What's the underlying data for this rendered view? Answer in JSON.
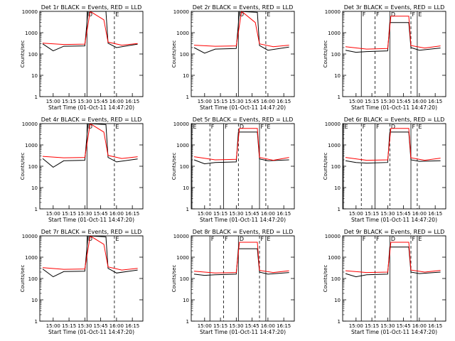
{
  "figure": {
    "ylabel": "Counts/sec",
    "xlabel": "Start Time (01-Oct-11 14:47:20)",
    "colors": {
      "events": "#000000",
      "lld": "#ff0000",
      "axes": "#000000",
      "background": "#ffffff"
    }
  },
  "chart_data": [
    {
      "type": "line",
      "title": "Det 1r  BLACK = Events, RED = LLD",
      "x": [
        "15:00",
        "15:15",
        "15:30",
        "15:45",
        "16:00",
        "16:15"
      ],
      "yticks": [
        "1",
        "10",
        "100",
        "1000",
        "10000"
      ],
      "ylim": [
        1,
        10000
      ],
      "yscale": "log",
      "markers": {
        "labels": [
          "D",
          "E"
        ],
        "times": [
          "15:32",
          "15:58"
        ]
      },
      "series": [
        {
          "color": "#000000",
          "points": [
            [
              "14:50",
              300
            ],
            [
              "15:00",
              140
            ],
            [
              "15:10",
              230
            ],
            [
              "15:30",
              240
            ],
            [
              "15:33",
              10000
            ],
            [
              "15:50",
              10000
            ],
            [
              "15:52",
              320
            ],
            [
              "16:00",
              200
            ],
            [
              "16:20",
              290
            ]
          ]
        },
        {
          "color": "#ff0000",
          "points": [
            [
              "14:50",
              320
            ],
            [
              "15:10",
              280
            ],
            [
              "15:30",
              290
            ],
            [
              "15:35",
              10000
            ],
            [
              "15:48",
              4000
            ],
            [
              "15:52",
              360
            ],
            [
              "16:05",
              260
            ],
            [
              "16:20",
              310
            ]
          ]
        }
      ]
    },
    {
      "type": "line",
      "title": "Det 2r  BLACK = Events, RED = LLD",
      "x": [
        "15:00",
        "15:15",
        "15:30",
        "15:45",
        "16:00",
        "16:15"
      ],
      "yticks": [
        "1",
        "10",
        "100",
        "1000",
        "10000"
      ],
      "ylim": [
        1,
        10000
      ],
      "yscale": "log",
      "markers": {
        "labels": [
          "D",
          "E"
        ],
        "times": [
          "15:32",
          "15:58"
        ]
      },
      "series": [
        {
          "color": "#000000",
          "points": [
            [
              "14:50",
              200
            ],
            [
              "15:00",
              110
            ],
            [
              "15:10",
              170
            ],
            [
              "15:30",
              180
            ],
            [
              "15:33",
              10000
            ],
            [
              "15:50",
              9000
            ],
            [
              "15:52",
              250
            ],
            [
              "16:00",
              150
            ],
            [
              "16:20",
              210
            ]
          ]
        },
        {
          "color": "#ff0000",
          "points": [
            [
              "14:50",
              260
            ],
            [
              "15:10",
              230
            ],
            [
              "15:30",
              240
            ],
            [
              "15:35",
              10000
            ],
            [
              "15:48",
              3000
            ],
            [
              "15:52",
              300
            ],
            [
              "16:05",
              220
            ],
            [
              "16:20",
              260
            ]
          ]
        }
      ]
    },
    {
      "type": "line",
      "title": "Det 3r  BLACK = Events, RED = LLD",
      "x": [
        "15:00",
        "15:15",
        "15:30",
        "15:45",
        "16:00",
        "16:15"
      ],
      "yticks": [
        "1",
        "10",
        "100",
        "1000",
        "10000"
      ],
      "ylim": [
        1,
        10000
      ],
      "yscale": "log",
      "markers": {
        "labels": [
          "F",
          "F",
          "D",
          "F",
          "E"
        ],
        "times": [
          "15:05",
          "15:18",
          "15:32",
          "15:52",
          "15:58"
        ]
      },
      "series": [
        {
          "color": "#000000",
          "points": [
            [
              "14:50",
              150
            ],
            [
              "15:00",
              120
            ],
            [
              "15:10",
              130
            ],
            [
              "15:30",
              140
            ],
            [
              "15:32",
              3000
            ],
            [
              "15:50",
              3000
            ],
            [
              "15:52",
              200
            ],
            [
              "16:00",
              150
            ],
            [
              "16:20",
              190
            ]
          ]
        },
        {
          "color": "#ff0000",
          "points": [
            [
              "14:50",
              220
            ],
            [
              "15:10",
              170
            ],
            [
              "15:30",
              180
            ],
            [
              "15:33",
              6000
            ],
            [
              "15:50",
              6000
            ],
            [
              "15:52",
              250
            ],
            [
              "16:05",
              190
            ],
            [
              "16:20",
              240
            ]
          ]
        }
      ]
    },
    {
      "type": "line",
      "title": "Det 4r  BLACK = Events, RED = LLD",
      "x": [
        "15:00",
        "15:15",
        "15:30",
        "15:45",
        "16:00",
        "16:15"
      ],
      "yticks": [
        "1",
        "10",
        "100",
        "1000",
        "10000"
      ],
      "ylim": [
        1,
        10000
      ],
      "yscale": "log",
      "markers": {
        "labels": [
          "D",
          "E"
        ],
        "times": [
          "15:32",
          "15:58"
        ]
      },
      "series": [
        {
          "color": "#000000",
          "points": [
            [
              "14:50",
              230
            ],
            [
              "15:00",
              90
            ],
            [
              "15:10",
              180
            ],
            [
              "15:30",
              190
            ],
            [
              "15:33",
              10000
            ],
            [
              "15:50",
              9000
            ],
            [
              "15:52",
              260
            ],
            [
              "16:00",
              160
            ],
            [
              "16:20",
              220
            ]
          ]
        },
        {
          "color": "#ff0000",
          "points": [
            [
              "14:50",
              290
            ],
            [
              "15:10",
              250
            ],
            [
              "15:30",
              260
            ],
            [
              "15:35",
              10000
            ],
            [
              "15:48",
              4000
            ],
            [
              "15:52",
              320
            ],
            [
              "16:05",
              230
            ],
            [
              "16:20",
              280
            ]
          ]
        }
      ]
    },
    {
      "type": "line",
      "title": "Det 5r  BLACK = Events, RED = LLD",
      "x": [
        "15:00",
        "15:15",
        "15:30",
        "15:45",
        "16:00",
        "16:15"
      ],
      "yticks": [
        "1",
        "10",
        "100",
        "1000",
        "10000"
      ],
      "ylim": [
        1,
        10000
      ],
      "yscale": "log",
      "markers": {
        "labels": [
          "E",
          "F",
          "F",
          "D",
          "F",
          "E"
        ],
        "times": [
          "14:48",
          "15:05",
          "15:18",
          "15:32",
          "15:52",
          "15:58"
        ]
      },
      "series": [
        {
          "color": "#000000",
          "points": [
            [
              "14:50",
              200
            ],
            [
              "15:00",
              130
            ],
            [
              "15:10",
              150
            ],
            [
              "15:30",
              160
            ],
            [
              "15:32",
              4000
            ],
            [
              "15:50",
              4000
            ],
            [
              "15:52",
              220
            ],
            [
              "16:00",
              180
            ],
            [
              "16:20",
              200
            ]
          ]
        },
        {
          "color": "#ff0000",
          "points": [
            [
              "14:50",
              280
            ],
            [
              "15:10",
              200
            ],
            [
              "15:30",
              210
            ],
            [
              "15:33",
              6000
            ],
            [
              "15:50",
              6000
            ],
            [
              "15:52",
              260
            ],
            [
              "16:05",
              190
            ],
            [
              "16:20",
              260
            ]
          ]
        }
      ]
    },
    {
      "type": "line",
      "title": "Det 6r  BLACK = Events, RED = LLD",
      "x": [
        "15:00",
        "15:15",
        "15:30",
        "15:45",
        "16:00",
        "16:15"
      ],
      "yticks": [
        "1",
        "10",
        "100",
        "1000",
        "10000"
      ],
      "ylim": [
        1,
        10000
      ],
      "yscale": "log",
      "markers": {
        "labels": [
          "E",
          "F",
          "F",
          "D",
          "F",
          "E"
        ],
        "times": [
          "14:48",
          "15:05",
          "15:18",
          "15:32",
          "15:52",
          "15:58"
        ]
      },
      "series": [
        {
          "color": "#000000",
          "points": [
            [
              "14:50",
              180
            ],
            [
              "15:00",
              150
            ],
            [
              "15:10",
              140
            ],
            [
              "15:30",
              150
            ],
            [
              "15:32",
              4000
            ],
            [
              "15:50",
              4000
            ],
            [
              "15:52",
              200
            ],
            [
              "16:00",
              170
            ],
            [
              "16:20",
              180
            ]
          ]
        },
        {
          "color": "#ff0000",
          "points": [
            [
              "14:50",
              260
            ],
            [
              "15:10",
              190
            ],
            [
              "15:30",
              200
            ],
            [
              "15:33",
              6000
            ],
            [
              "15:50",
              6000
            ],
            [
              "15:52",
              250
            ],
            [
              "16:05",
              190
            ],
            [
              "16:20",
              240
            ]
          ]
        }
      ]
    },
    {
      "type": "line",
      "title": "Det 7r  BLACK = Events, RED = LLD",
      "x": [
        "15:00",
        "15:15",
        "15:30",
        "15:45",
        "16:00",
        "16:15"
      ],
      "yticks": [
        "1",
        "10",
        "100",
        "1000",
        "10000"
      ],
      "ylim": [
        1,
        10000
      ],
      "yscale": "log",
      "markers": {
        "labels": [
          "D",
          "E"
        ],
        "times": [
          "15:32",
          "15:58"
        ]
      },
      "series": [
        {
          "color": "#000000",
          "points": [
            [
              "14:50",
              280
            ],
            [
              "15:00",
              120
            ],
            [
              "15:10",
              210
            ],
            [
              "15:30",
              220
            ],
            [
              "15:33",
              10000
            ],
            [
              "15:50",
              9000
            ],
            [
              "15:52",
              300
            ],
            [
              "16:00",
              180
            ],
            [
              "16:20",
              250
            ]
          ]
        },
        {
          "color": "#ff0000",
          "points": [
            [
              "14:50",
              320
            ],
            [
              "15:10",
              270
            ],
            [
              "15:30",
              280
            ],
            [
              "15:35",
              10000
            ],
            [
              "15:48",
              4000
            ],
            [
              "15:52",
              350
            ],
            [
              "16:05",
              250
            ],
            [
              "16:20",
              300
            ]
          ]
        }
      ]
    },
    {
      "type": "line",
      "title": "Det 8r  BLACK = Events, RED = LLD",
      "x": [
        "15:00",
        "15:15",
        "15:30",
        "15:45",
        "16:00",
        "16:15"
      ],
      "yticks": [
        "1",
        "10",
        "100",
        "1000",
        "10000"
      ],
      "ylim": [
        1,
        10000
      ],
      "yscale": "log",
      "markers": {
        "labels": [
          "F",
          "F",
          "D",
          "F",
          "E"
        ],
        "times": [
          "15:05",
          "15:18",
          "15:32",
          "15:52",
          "15:58"
        ]
      },
      "series": [
        {
          "color": "#000000",
          "points": [
            [
              "14:50",
              160
            ],
            [
              "15:00",
              140
            ],
            [
              "15:10",
              150
            ],
            [
              "15:30",
              160
            ],
            [
              "15:32",
              2500
            ],
            [
              "15:50",
              2500
            ],
            [
              "15:52",
              200
            ],
            [
              "16:00",
              160
            ],
            [
              "16:20",
              190
            ]
          ]
        },
        {
          "color": "#ff0000",
          "points": [
            [
              "14:50",
              220
            ],
            [
              "15:10",
              180
            ],
            [
              "15:30",
              190
            ],
            [
              "15:33",
              5000
            ],
            [
              "15:50",
              5000
            ],
            [
              "15:52",
              240
            ],
            [
              "16:05",
              190
            ],
            [
              "16:20",
              230
            ]
          ]
        }
      ]
    },
    {
      "type": "line",
      "title": "Det 9r  BLACK = Events, RED = LLD",
      "x": [
        "15:00",
        "15:15",
        "15:30",
        "15:45",
        "16:00",
        "16:15"
      ],
      "yticks": [
        "1",
        "10",
        "100",
        "1000",
        "10000"
      ],
      "ylim": [
        1,
        10000
      ],
      "yscale": "log",
      "markers": {
        "labels": [
          "F",
          "F",
          "D",
          "F",
          "E"
        ],
        "times": [
          "15:05",
          "15:18",
          "15:32",
          "15:52",
          "15:58"
        ]
      },
      "series": [
        {
          "color": "#000000",
          "points": [
            [
              "14:50",
              170
            ],
            [
              "15:00",
              120
            ],
            [
              "15:10",
              150
            ],
            [
              "15:30",
              160
            ],
            [
              "15:32",
              3000
            ],
            [
              "15:50",
              3000
            ],
            [
              "15:52",
              200
            ],
            [
              "16:00",
              170
            ],
            [
              "16:20",
              200
            ]
          ]
        },
        {
          "color": "#ff0000",
          "points": [
            [
              "14:50",
              230
            ],
            [
              "15:10",
              190
            ],
            [
              "15:30",
              200
            ],
            [
              "15:33",
              5000
            ],
            [
              "15:50",
              5000
            ],
            [
              "15:52",
              250
            ],
            [
              "16:05",
              200
            ],
            [
              "16:20",
              240
            ]
          ]
        }
      ]
    }
  ]
}
